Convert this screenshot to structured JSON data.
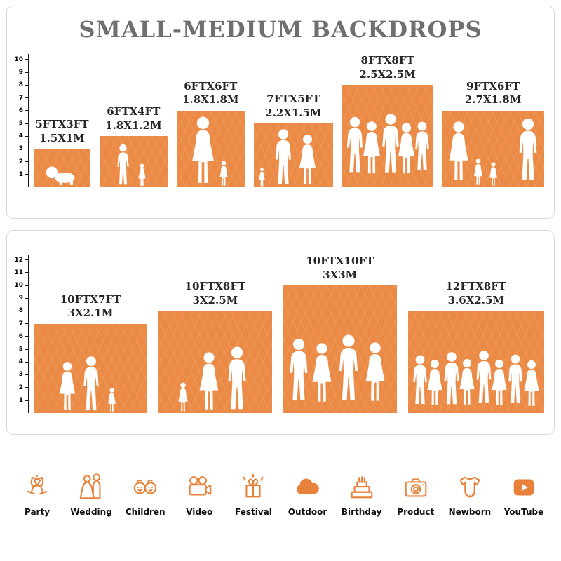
{
  "title": "SMALL-MEDIUM BACKDROPS",
  "colors": {
    "bar": "#EB8A45",
    "icon": "#E8823A",
    "title": "#6f6f6f",
    "label": "#262626"
  },
  "chart_data": [
    {
      "type": "bar",
      "title": "SMALL-MEDIUM BACKDROPS",
      "yticks": [
        1,
        2,
        3,
        4,
        5,
        6,
        7,
        8,
        9,
        10
      ],
      "ylim": [
        0,
        10
      ],
      "grid": false,
      "legend": "none",
      "categories": [
        "5FTX3FT",
        "6FTX4FT",
        "6FTX6FT",
        "7FTX5FT",
        "8FTX8FT",
        "9FTX6FT"
      ],
      "bars": [
        {
          "size_ft": "5FTX3FT",
          "size_m": "1.5X1M",
          "width_ft": 5,
          "height_ft": 3
        },
        {
          "size_ft": "6FTX4FT",
          "size_m": "1.8X1.2M",
          "width_ft": 6,
          "height_ft": 4
        },
        {
          "size_ft": "6FTX6FT",
          "size_m": "1.8X1.8M",
          "width_ft": 6,
          "height_ft": 6
        },
        {
          "size_ft": "7FTX5FT",
          "size_m": "2.2X1.5M",
          "width_ft": 7,
          "height_ft": 5
        },
        {
          "size_ft": "8FTX8FT",
          "size_m": "2.5X2.5M",
          "width_ft": 8,
          "height_ft": 8
        },
        {
          "size_ft": "9FTX6FT",
          "size_m": "2.7X1.8M",
          "width_ft": 9,
          "height_ft": 6
        }
      ]
    },
    {
      "type": "bar",
      "yticks": [
        1,
        2,
        3,
        4,
        5,
        6,
        7,
        8,
        9,
        10,
        11,
        12
      ],
      "ylim": [
        0,
        12
      ],
      "grid": false,
      "legend": "none",
      "categories": [
        "10FTX7FT",
        "10FTX8FT",
        "10FTX10FT",
        "12FTX8FT"
      ],
      "bars": [
        {
          "size_ft": "10FTX7FT",
          "size_m": "3X2.1M",
          "width_ft": 10,
          "height_ft": 7
        },
        {
          "size_ft": "10FTX8FT",
          "size_m": "3X2.5M",
          "width_ft": 10,
          "height_ft": 8
        },
        {
          "size_ft": "10FTX10FT",
          "size_m": "3X3M",
          "width_ft": 10,
          "height_ft": 10
        },
        {
          "size_ft": "12FTX8FT",
          "size_m": "3.6X2.5M",
          "width_ft": 12,
          "height_ft": 8
        }
      ]
    }
  ],
  "categories": [
    {
      "label": "Party",
      "icon": "party-icon"
    },
    {
      "label": "Wedding",
      "icon": "wedding-icon"
    },
    {
      "label": "Children",
      "icon": "children-icon"
    },
    {
      "label": "Video",
      "icon": "video-icon"
    },
    {
      "label": "Festival",
      "icon": "festival-icon"
    },
    {
      "label": "Outdoor",
      "icon": "outdoor-icon"
    },
    {
      "label": "Birthday",
      "icon": "birthday-icon"
    },
    {
      "label": "Product",
      "icon": "product-icon"
    },
    {
      "label": "Newborn",
      "icon": "newborn-icon"
    },
    {
      "label": "YouTube",
      "icon": "youtube-icon"
    }
  ]
}
